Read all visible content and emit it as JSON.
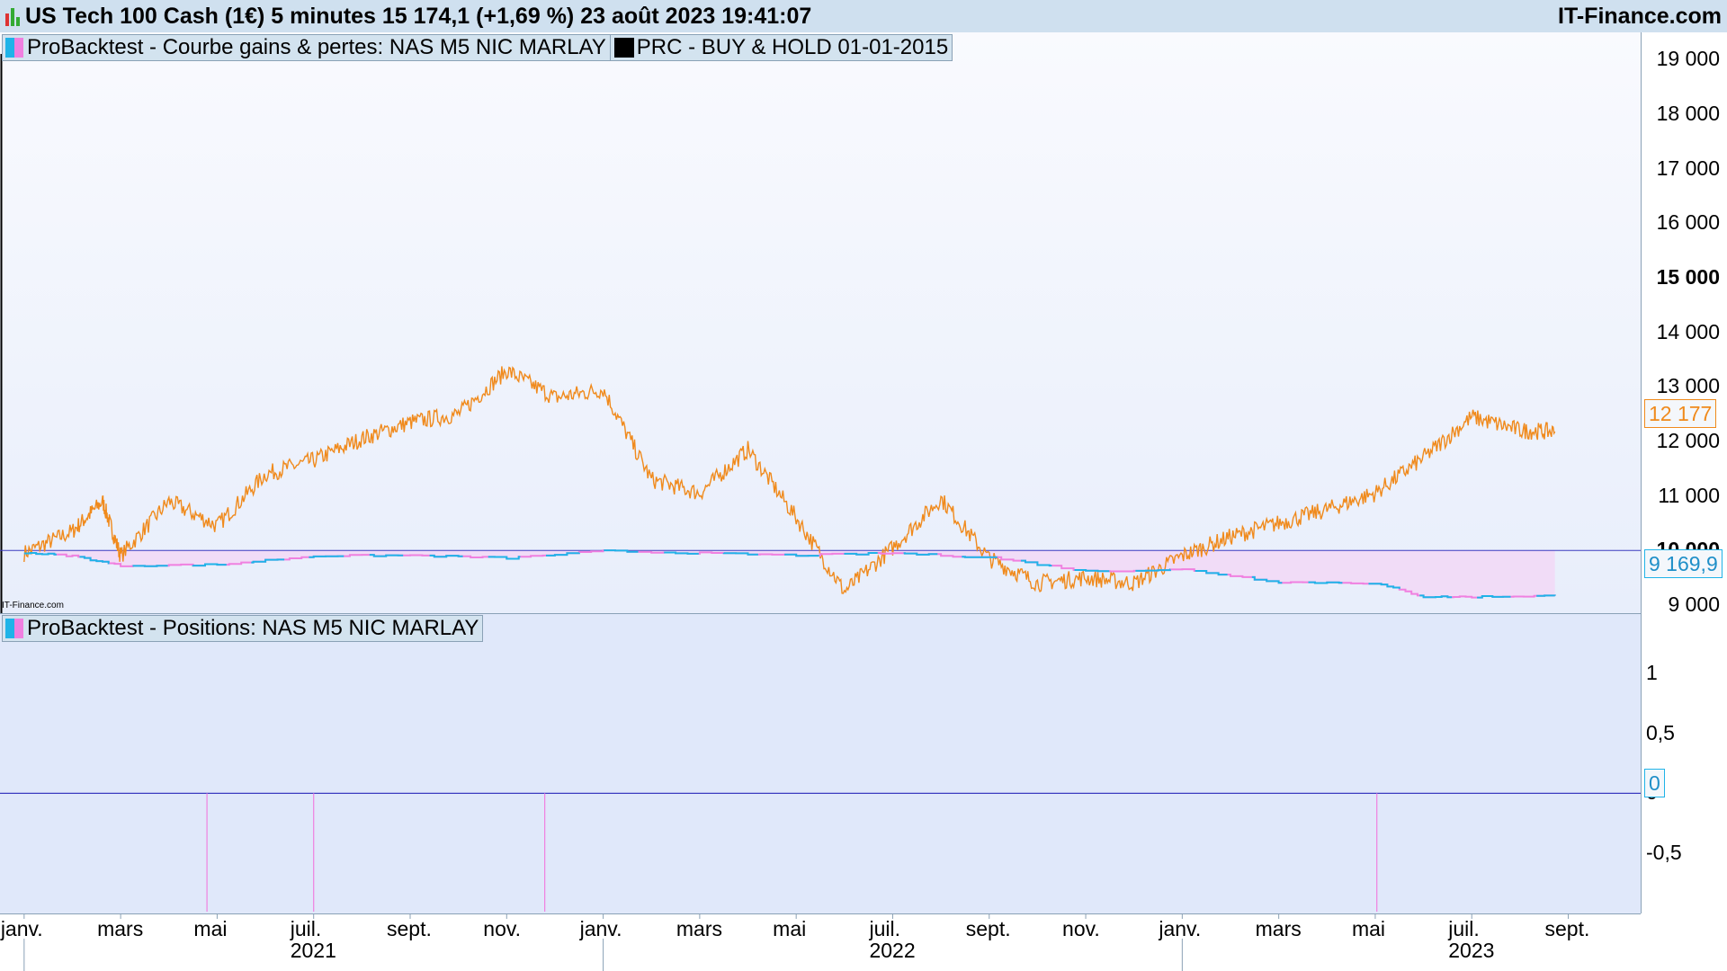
{
  "header": {
    "title": "US Tech 100 Cash (1€) 5 minutes 15 174,1 (+1,69 %) 23 août 2023 19:41:07",
    "brand": "IT-Finance.com"
  },
  "watermark": "IT-Finance.com",
  "colors": {
    "price": "#f08a1c",
    "equity_cyan": "#1fb3e8",
    "equity_pink": "#f080e0",
    "fill_pink": "#f2d8f6",
    "baseline": "#3b3bc0",
    "panel_top_bg": "#eef2fc",
    "panel_bottom_bg": "#e1e9fa"
  },
  "legends": {
    "equity": "ProBacktest - Courbe gains & pertes: NAS M5 NIC MARLAY",
    "bh": "PRC - BUY & HOLD 01-01-2015",
    "positions": "ProBacktest - Positions: NAS M5 NIC MARLAY"
  },
  "price_boxes": {
    "price": "12 177",
    "equity": "9 169,9",
    "position": "0"
  },
  "chart_data": [
    {
      "type": "line",
      "title": "ProBacktest - Courbe gains & pertes: NAS M5 NIC MARLAY",
      "y_ticks": [
        "19 000",
        "18 000",
        "17 000",
        "16 000",
        "15 000",
        "14 000",
        "13 000",
        "12 000",
        "11 000",
        "10 000",
        "9 000"
      ],
      "y_ticks_bold": [
        "15 000",
        "10 000"
      ],
      "ylim": [
        8850,
        19500
      ],
      "x_months": [
        "janv.",
        "mars",
        "mai",
        "juil.",
        "sept.",
        "nov.",
        "janv.",
        "mars",
        "mai",
        "juil.",
        "sept.",
        "nov.",
        "janv.",
        "mars",
        "mai",
        "juil.",
        "sept."
      ],
      "x_years": [
        "2021",
        "2022",
        "2023"
      ],
      "baseline": 10000,
      "series": [
        {
          "name": "PRC - BUY & HOLD 01-01-2015",
          "x": [
            "2021-01",
            "2021-02",
            "2021-02-20",
            "2021-03",
            "2021-04",
            "2021-05",
            "2021-06",
            "2021-07",
            "2021-08",
            "2021-09",
            "2021-10",
            "2021-11",
            "2021-12",
            "2022-01",
            "2022-02",
            "2022-03",
            "2022-04",
            "2022-05",
            "2022-06",
            "2022-07",
            "2022-08",
            "2022-09",
            "2022-10",
            "2022-11",
            "2022-12",
            "2023-01",
            "2023-02",
            "2023-03",
            "2023-04",
            "2023-05",
            "2023-06",
            "2023-07",
            "2023-08",
            "2023-08-23"
          ],
          "values": [
            9950,
            10350,
            10900,
            9900,
            10900,
            10450,
            11400,
            11650,
            12050,
            12350,
            12500,
            13300,
            12800,
            12950,
            11300,
            11050,
            11850,
            10600,
            9250,
            10050,
            10950,
            9850,
            9400,
            9500,
            9400,
            9900,
            10250,
            10500,
            10750,
            11050,
            11700,
            12450,
            12200,
            12177
          ]
        },
        {
          "name": "ProBacktest - Courbe gains & pertes: NAS M5 NIC MARLAY",
          "x": [
            "2021-01",
            "2021-02",
            "2021-03",
            "2021-05",
            "2021-07",
            "2021-09",
            "2021-11",
            "2022-01",
            "2022-03",
            "2022-05",
            "2022-07",
            "2022-09",
            "2022-11",
            "2023-01",
            "2023-03",
            "2023-05",
            "2023-06",
            "2023-07",
            "2023-08-23"
          ],
          "values": [
            9960,
            9900,
            9720,
            9740,
            9900,
            9910,
            9860,
            9990,
            9950,
            9910,
            9950,
            9870,
            9620,
            9650,
            9420,
            9400,
            9150,
            9150,
            9170
          ]
        }
      ]
    },
    {
      "type": "line",
      "title": "ProBacktest - Positions: NAS M5 NIC MARLAY",
      "y_ticks": [
        "1",
        "0,5",
        "0",
        "-0,5"
      ],
      "ylim": [
        -1,
        1.5
      ],
      "series": [
        {
          "name": "ProBacktest - Positions: NAS M5 NIC MARLAY",
          "x": [
            "2021-04-25",
            "2021-07-01",
            "2021-11-25",
            "2023-05-02"
          ],
          "values": [
            -1,
            -1,
            -1,
            -1
          ]
        }
      ]
    }
  ]
}
